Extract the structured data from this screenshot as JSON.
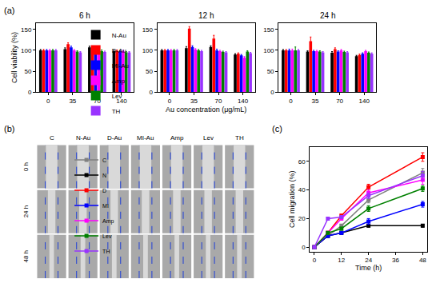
{
  "chart_data": [
    {
      "type": "bar",
      "title": "6 h",
      "annotations": [
        "(a)"
      ],
      "y_label": "Cell viability (%)",
      "categories": [
        "0",
        "35",
        "70",
        "140"
      ],
      "ylim": [
        0,
        165
      ],
      "yticks": [
        0,
        50,
        100,
        150
      ],
      "legend": "right",
      "series": [
        {
          "name": "N-Au",
          "color": "#000000",
          "values": [
            100,
            103,
            107,
            98
          ],
          "errors": [
            2,
            3,
            3,
            2
          ]
        },
        {
          "name": "D-Au",
          "color": "#ff0000",
          "values": [
            100,
            115,
            106,
            99
          ],
          "errors": [
            2,
            3,
            3,
            2
          ]
        },
        {
          "name": "MI-Au",
          "color": "#0000ff",
          "values": [
            100,
            107,
            103,
            97
          ],
          "errors": [
            2,
            3,
            3,
            2
          ]
        },
        {
          "name": "Amp",
          "color": "#ff00ff",
          "values": [
            100,
            100,
            101,
            98
          ],
          "errors": [
            2,
            2,
            3,
            2
          ]
        },
        {
          "name": "Lev",
          "color": "#008000",
          "values": [
            100,
            97,
            98,
            95
          ],
          "errors": [
            2,
            2,
            3,
            2
          ]
        },
        {
          "name": "TH",
          "color": "#9933ff",
          "values": [
            100,
            95,
            96,
            95
          ],
          "errors": [
            2,
            2,
            2,
            2
          ]
        }
      ]
    },
    {
      "type": "bar",
      "title": "12 h",
      "x_label": "Au concentration (μg/mL)",
      "categories": [
        "0",
        "35",
        "70",
        "140"
      ],
      "ylim": [
        0,
        165
      ],
      "yticks": [
        0,
        50,
        100,
        150
      ],
      "series": [
        {
          "name": "N-Au",
          "color": "#000000",
          "values": [
            100,
            105,
            108,
            90
          ],
          "errors": [
            2,
            4,
            3,
            2
          ]
        },
        {
          "name": "D-Au",
          "color": "#ff0000",
          "values": [
            100,
            152,
            128,
            92
          ],
          "errors": [
            2,
            5,
            8,
            2
          ]
        },
        {
          "name": "MI-Au",
          "color": "#0000ff",
          "values": [
            100,
            108,
            100,
            88
          ],
          "errors": [
            2,
            3,
            3,
            2
          ]
        },
        {
          "name": "Amp",
          "color": "#ff00ff",
          "values": [
            100,
            102,
            98,
            82
          ],
          "errors": [
            2,
            2,
            2,
            3
          ]
        },
        {
          "name": "Lev",
          "color": "#008000",
          "values": [
            100,
            100,
            96,
            97
          ],
          "errors": [
            2,
            2,
            2,
            2
          ]
        },
        {
          "name": "TH",
          "color": "#9933ff",
          "values": [
            100,
            98,
            95,
            93
          ],
          "errors": [
            2,
            2,
            2,
            2
          ]
        }
      ]
    },
    {
      "type": "bar",
      "title": "24 h",
      "categories": [
        "0",
        "35",
        "70",
        "140"
      ],
      "ylim": [
        0,
        165
      ],
      "yticks": [
        0,
        50,
        100,
        150
      ],
      "series": [
        {
          "name": "N-Au",
          "color": "#000000",
          "values": [
            100,
            97,
            94,
            86
          ],
          "errors": [
            2,
            2,
            3,
            2
          ]
        },
        {
          "name": "D-Au",
          "color": "#ff0000",
          "values": [
            100,
            122,
            103,
            89
          ],
          "errors": [
            2,
            10,
            3,
            2
          ]
        },
        {
          "name": "MI-Au",
          "color": "#0000ff",
          "values": [
            100,
            98,
            97,
            92
          ],
          "errors": [
            3,
            2,
            2,
            2
          ]
        },
        {
          "name": "Amp",
          "color": "#ff00ff",
          "values": [
            100,
            98,
            100,
            98
          ],
          "errors": [
            3,
            2,
            2,
            2
          ]
        },
        {
          "name": "Lev",
          "color": "#008000",
          "values": [
            100,
            97,
            96,
            94
          ],
          "errors": [
            8,
            2,
            2,
            2
          ]
        },
        {
          "name": "TH",
          "color": "#9933ff",
          "values": [
            100,
            95,
            95,
            92
          ],
          "errors": [
            2,
            2,
            2,
            2
          ]
        }
      ]
    },
    {
      "type": "line",
      "annotations": [
        "(c)"
      ],
      "x_label": "Time (h)",
      "y_label": "Cell migration (%)",
      "x": [
        0,
        6,
        12,
        24,
        48
      ],
      "xlim": [
        -2,
        50
      ],
      "xticks": [
        0,
        12,
        24,
        36,
        48
      ],
      "ylim": [
        -3,
        70
      ],
      "yticks": [
        0,
        20,
        40,
        60
      ],
      "legend": "upper left",
      "marker": "square",
      "series": [
        {
          "name": "C",
          "color": "#808080",
          "values": [
            0,
            8,
            15,
            33,
            52
          ],
          "errors": [
            0,
            1,
            1,
            2,
            3
          ]
        },
        {
          "name": "N",
          "color": "#000000",
          "values": [
            0,
            8,
            10,
            15,
            15
          ],
          "errors": [
            0,
            1,
            1,
            1,
            1
          ]
        },
        {
          "name": "D",
          "color": "#ff0000",
          "values": [
            0,
            10,
            22,
            42,
            63
          ],
          "errors": [
            0,
            1,
            1,
            2,
            3
          ]
        },
        {
          "name": "MI",
          "color": "#0000ff",
          "values": [
            0,
            8,
            10,
            18,
            30
          ],
          "errors": [
            0,
            1,
            1,
            2,
            2
          ]
        },
        {
          "name": "Amp",
          "color": "#ff00ff",
          "values": [
            0,
            10,
            20,
            38,
            47
          ],
          "errors": [
            0,
            1,
            1,
            2,
            3
          ]
        },
        {
          "name": "Lev",
          "color": "#008000",
          "values": [
            0,
            10,
            13,
            27,
            41
          ],
          "errors": [
            0,
            1,
            1,
            2,
            2
          ]
        },
        {
          "name": "TH",
          "color": "#9933ff",
          "values": [
            0,
            20,
            21,
            36,
            50
          ],
          "errors": [
            0,
            1,
            1,
            2,
            3
          ]
        }
      ]
    }
  ],
  "image_grid": {
    "label": "(b)",
    "columns": [
      "C",
      "N-Au",
      "D-Au",
      "MI-Au",
      "Amp",
      "Lev",
      "TH"
    ],
    "rows": [
      "0 h",
      "24 h",
      "48 h"
    ]
  }
}
